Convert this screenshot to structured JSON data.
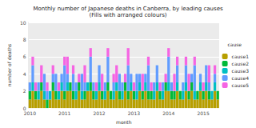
{
  "chart_data": {
    "type": "bar",
    "title": "Monthly number of Japanese deaths in Canberra, by leading causes",
    "subtitle": "(Fills with arranged colours)",
    "x_label": "month",
    "y_label": "number of deaths",
    "legend_title": "cause",
    "legend": "right",
    "stacked": true,
    "grid": true,
    "categories": [
      "2010",
      null,
      null,
      null,
      null,
      null,
      null,
      null,
      null,
      null,
      null,
      null,
      "2011",
      null,
      null,
      null,
      null,
      null,
      null,
      null,
      null,
      null,
      null,
      null,
      "2012",
      null,
      null,
      null,
      null,
      null,
      null,
      null,
      null,
      null,
      null,
      null,
      "2013",
      null,
      null,
      null,
      null,
      null,
      null,
      null,
      null,
      null,
      null,
      null,
      "2014",
      null,
      null,
      null,
      null,
      null,
      null,
      null,
      null,
      null,
      null,
      null,
      "2015",
      null,
      null,
      null,
      null,
      null
    ],
    "ylim": [
      0,
      10
    ],
    "yticks": [
      0,
      2,
      4,
      6,
      8,
      10
    ],
    "series": [
      {
        "name": "cause1",
        "color": "#B79F00",
        "values": [
          1,
          2,
          1,
          1,
          2,
          1,
          0,
          1,
          2,
          1,
          1,
          2,
          1,
          2,
          2,
          1,
          1,
          2,
          1,
          1,
          2,
          2,
          1,
          1,
          2,
          1,
          1,
          2,
          1,
          1,
          2,
          1,
          1,
          2,
          1,
          2,
          1,
          1,
          2,
          1,
          2,
          1,
          1,
          1,
          2,
          1,
          1,
          2,
          2,
          1,
          1,
          2,
          1,
          1,
          2,
          1,
          2,
          1,
          1,
          2,
          1,
          2,
          1,
          1,
          2,
          1
        ]
      },
      {
        "name": "cause2",
        "color": "#00BA38",
        "values": [
          1,
          0,
          1,
          0,
          1,
          0,
          1,
          0,
          1,
          1,
          0,
          0,
          1,
          0,
          1,
          1,
          0,
          1,
          0,
          1,
          0,
          1,
          1,
          0,
          0,
          1,
          0,
          1,
          1,
          0,
          0,
          1,
          0,
          1,
          1,
          0,
          1,
          0,
          0,
          1,
          0,
          1,
          1,
          0,
          0,
          1,
          0,
          1,
          0,
          1,
          1,
          0,
          1,
          0,
          0,
          1,
          1,
          0,
          1,
          0,
          1,
          0,
          1,
          0,
          0,
          1
        ]
      },
      {
        "name": "cause3",
        "color": "#00BFC4",
        "values": [
          0,
          1,
          0,
          1,
          0,
          1,
          0,
          1,
          0,
          0,
          1,
          1,
          0,
          1,
          0,
          0,
          1,
          0,
          1,
          0,
          1,
          0,
          0,
          1,
          1,
          0,
          1,
          0,
          0,
          1,
          1,
          0,
          1,
          0,
          0,
          1,
          0,
          1,
          1,
          0,
          1,
          0,
          0,
          1,
          1,
          0,
          1,
          0,
          1,
          0,
          0,
          1,
          0,
          1,
          1,
          0,
          0,
          1,
          0,
          1,
          0,
          1,
          0,
          1,
          1,
          0
        ]
      },
      {
        "name": "cause4",
        "color": "#619CFF",
        "values": [
          1,
          2,
          0,
          1,
          0,
          2,
          1,
          0,
          1,
          2,
          0,
          1,
          3,
          1,
          0,
          2,
          1,
          0,
          2,
          1,
          0,
          3,
          1,
          0,
          2,
          0,
          1,
          3,
          0,
          1,
          0,
          2,
          1,
          0,
          3,
          1,
          0,
          2,
          1,
          0,
          1,
          3,
          0,
          1,
          2,
          0,
          1,
          0,
          3,
          1,
          0,
          2,
          0,
          1,
          2,
          0,
          1,
          3,
          0,
          1,
          0,
          2,
          1,
          0,
          1,
          0
        ]
      },
      {
        "name": "cause5",
        "color": "#F564E3",
        "values": [
          0,
          1,
          1,
          0,
          2,
          0,
          1,
          0,
          1,
          0,
          1,
          0,
          1,
          2,
          0,
          1,
          0,
          1,
          0,
          2,
          0,
          1,
          0,
          1,
          0,
          2,
          0,
          1,
          0,
          1,
          2,
          0,
          0,
          1,
          2,
          0,
          1,
          0,
          0,
          2,
          0,
          1,
          1,
          0,
          0,
          1,
          0,
          1,
          1,
          0,
          2,
          1,
          0,
          0,
          1,
          2,
          0,
          1,
          0,
          0,
          1,
          0,
          2,
          0,
          1,
          0
        ]
      }
    ]
  }
}
